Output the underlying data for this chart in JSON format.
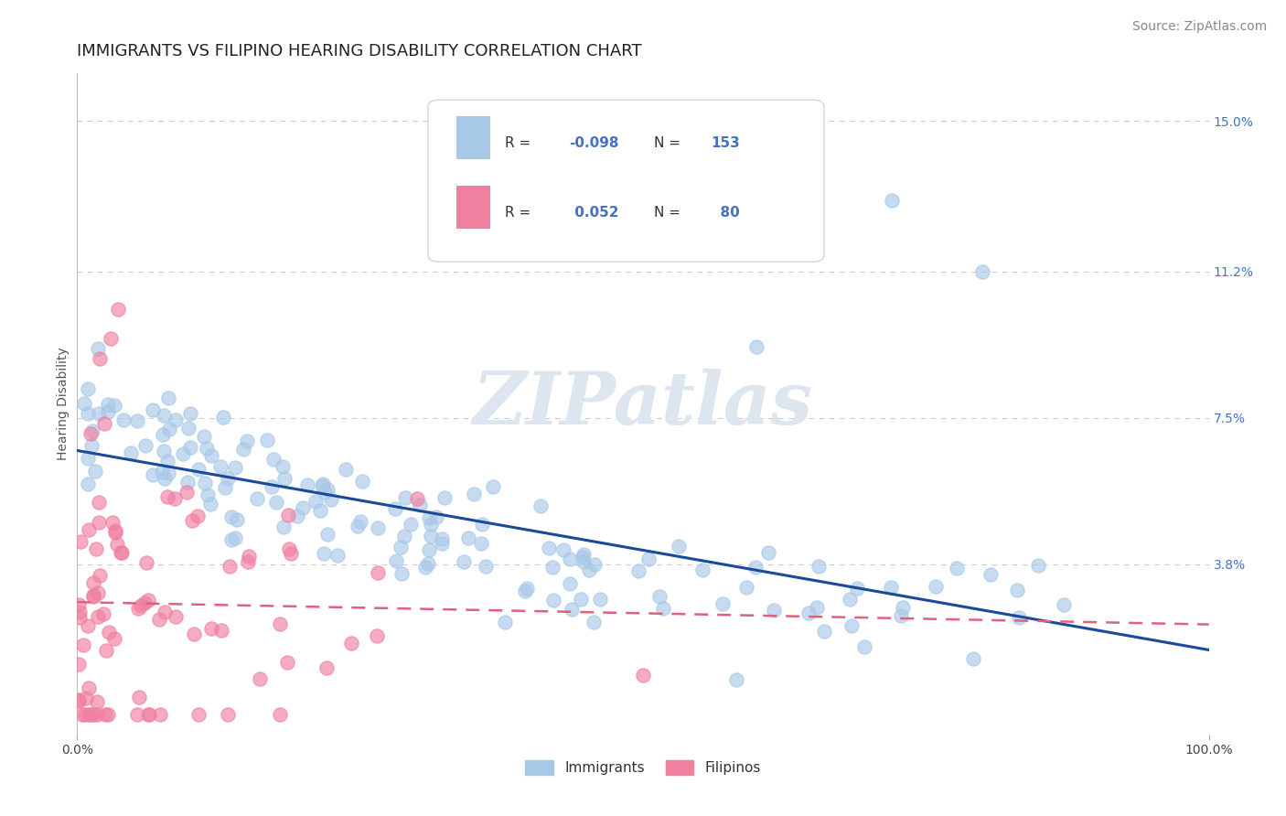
{
  "title": "IMMIGRANTS VS FILIPINO HEARING DISABILITY CORRELATION CHART",
  "source": "Source: ZipAtlas.com",
  "ylabel": "Hearing Disability",
  "xlim": [
    0,
    1.0
  ],
  "ylim": [
    -0.005,
    0.162
  ],
  "ytick_values": [
    0.038,
    0.075,
    0.112,
    0.15
  ],
  "ytick_labels": [
    "3.8%",
    "7.5%",
    "11.2%",
    "15.0%"
  ],
  "immigrants_R": -0.098,
  "immigrants_N": 153,
  "filipinos_R": 0.052,
  "filipinos_N": 80,
  "immigrants_color": "#a8c8e8",
  "filipinos_color": "#f080a0",
  "trend_immigrants_color": "#1a4a9a",
  "trend_filipinos_color": "#e06080",
  "title_fontsize": 13,
  "axis_label_fontsize": 10,
  "tick_fontsize": 10,
  "source_fontsize": 10
}
